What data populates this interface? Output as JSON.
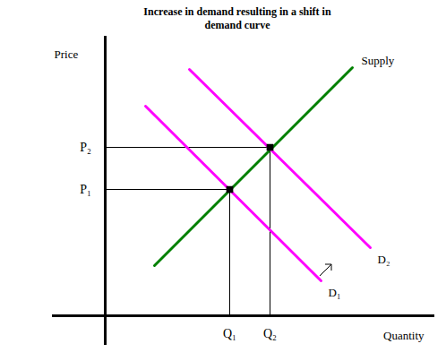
{
  "chart_data": {
    "type": "line",
    "title": "Increase in demand resulting in a shift in demand curve",
    "xlabel": "Quantity",
    "ylabel": "Price",
    "xlim": [
      -5.9,
      36.8
    ],
    "ylim": [
      -3.3,
      31.2
    ],
    "xticks": [
      {
        "value": 13.9,
        "label": "Q₁"
      },
      {
        "value": 18.4,
        "label": "Q₂"
      }
    ],
    "yticks": [
      {
        "value": 14.1,
        "label": "P₁"
      },
      {
        "value": 18.8,
        "label": "P₂"
      }
    ],
    "marker": "square",
    "series": [
      {
        "name": "Supply",
        "color": "#008000",
        "x": [
          5.5,
          27.6
        ],
        "values": [
          5.6,
          27.7
        ]
      },
      {
        "name": "D₁",
        "color": "#ff00ff",
        "x": [
          4.5,
          24.1
        ],
        "values": [
          23.4,
          3.9
        ]
      },
      {
        "name": "D₂",
        "color": "#ff00ff",
        "x": [
          9.4,
          29.6
        ],
        "values": [
          27.5,
          7.6
        ]
      }
    ]
  }
}
